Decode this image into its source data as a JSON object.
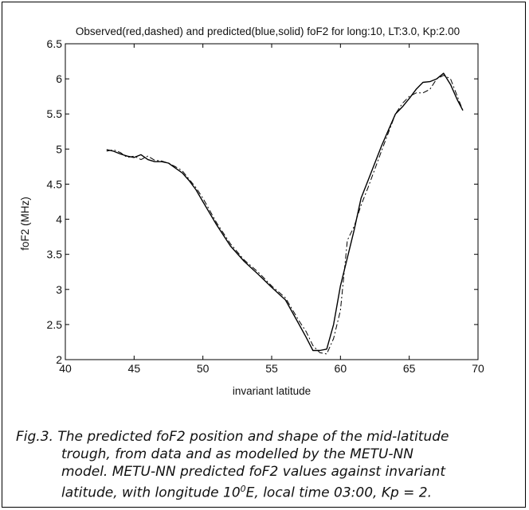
{
  "chart_data": {
    "type": "line",
    "title": "Observed(red,dashed) and predicted(blue,solid) foF2 for long:10, LT:3.0, Kp:2.00",
    "xlabel": "invariant latitude",
    "ylabel": "foF2 (MHz)",
    "xlim": [
      40,
      70
    ],
    "ylim": [
      2,
      6.5
    ],
    "xticks": [
      "40",
      "45",
      "50",
      "55",
      "60",
      "65",
      "70"
    ],
    "yticks": [
      "2",
      "2.5",
      "3",
      "3.5",
      "4",
      "4.5",
      "5",
      "5.5",
      "6",
      "6.5"
    ],
    "grid": false,
    "series": [
      {
        "name": "Observed",
        "style": "dashed",
        "color": "#000000",
        "x": [
          43,
          43.5,
          44,
          44.5,
          45,
          45.5,
          46,
          46.5,
          47,
          47.5,
          48,
          48.5,
          49,
          49.5,
          50,
          51,
          52,
          53,
          54,
          55,
          56,
          57,
          57.5,
          58,
          58.5,
          59,
          59.5,
          60,
          60.5,
          61,
          61.5,
          62,
          63,
          64,
          64.5,
          65,
          65.5,
          66,
          66.5,
          67,
          67.5,
          68,
          68.5,
          68.9
        ],
        "y": [
          4.97,
          4.99,
          4.95,
          4.88,
          4.9,
          4.85,
          4.9,
          4.84,
          4.83,
          4.8,
          4.75,
          4.69,
          4.57,
          4.45,
          4.3,
          3.95,
          3.65,
          3.42,
          3.25,
          3.05,
          2.88,
          2.55,
          2.4,
          2.2,
          2.1,
          2.08,
          2.3,
          2.7,
          3.7,
          3.9,
          4.2,
          4.45,
          4.98,
          5.5,
          5.65,
          5.75,
          5.8,
          5.8,
          5.85,
          6.0,
          6.05,
          6.0,
          5.75,
          5.55
        ]
      },
      {
        "name": "Predicted",
        "style": "solid",
        "color": "#000000",
        "x": [
          43,
          43.5,
          44,
          44.5,
          45,
          45.5,
          46,
          46.5,
          47,
          47.5,
          48,
          48.5,
          49,
          49.5,
          50,
          51,
          52,
          53,
          54,
          55,
          56,
          57,
          57.5,
          58,
          58.5,
          59,
          59.5,
          60,
          60.5,
          61,
          61.5,
          62,
          63,
          64,
          64.5,
          65,
          65.5,
          66,
          66.5,
          67,
          67.5,
          68,
          68.5,
          68.9
        ],
        "y": [
          4.99,
          4.97,
          4.93,
          4.9,
          4.88,
          4.92,
          4.85,
          4.82,
          4.82,
          4.8,
          4.73,
          4.66,
          4.55,
          4.42,
          4.25,
          3.92,
          3.62,
          3.4,
          3.22,
          3.03,
          2.85,
          2.5,
          2.32,
          2.13,
          2.13,
          2.15,
          2.5,
          3.05,
          3.45,
          3.85,
          4.3,
          4.55,
          5.05,
          5.5,
          5.6,
          5.72,
          5.85,
          5.95,
          5.96,
          6.0,
          6.08,
          5.92,
          5.7,
          5.55
        ]
      }
    ]
  },
  "caption": {
    "prefix": "Fig.3. ",
    "line1": "The predicted foF2 position and shape of the mid-latitude",
    "line2": "trough, from data and as modelled by the METU-NN",
    "line3": "model. METU-NN predicted foF2 values against invariant",
    "line4_start": "latitude, with longitude 10",
    "line4_sup": "0",
    "line4_end": "E, local time 03:00, Kp = 2."
  }
}
